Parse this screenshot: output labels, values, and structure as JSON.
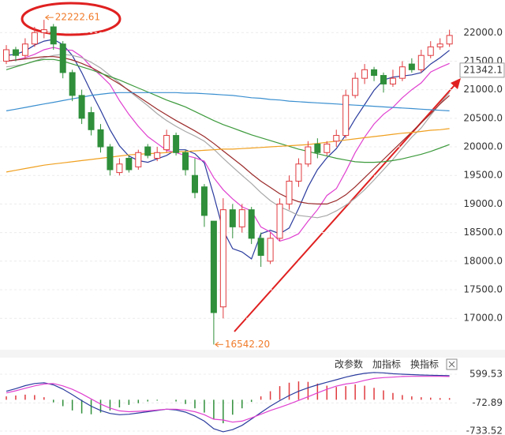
{
  "chart_data": [
    {
      "type": "candlestick",
      "open": [
        21500,
        21700,
        21600,
        21800,
        22000,
        22100,
        21800,
        21300,
        20900,
        20600,
        20300,
        20000,
        19550,
        19800,
        19650,
        20000,
        19800,
        19950,
        20200,
        19900,
        19500,
        19300,
        18700,
        17200,
        18900,
        18600,
        18900,
        18400,
        18000,
        18400,
        19000,
        19400,
        19700,
        20050,
        19900,
        20100,
        20200,
        20900,
        21200,
        21350,
        21250,
        21100,
        21200,
        21450,
        21350,
        21600,
        21750,
        21800
      ],
      "high": [
        21780,
        21750,
        21900,
        22100,
        22222.61,
        22150,
        21850,
        21350,
        21000,
        20700,
        20400,
        20050,
        19800,
        19850,
        19950,
        20050,
        20000,
        20300,
        20250,
        19950,
        19800,
        19350,
        18700,
        19100,
        19000,
        19000,
        18950,
        18500,
        18500,
        19100,
        19500,
        19800,
        20100,
        20150,
        20100,
        20300,
        21000,
        21300,
        21450,
        21400,
        21300,
        21350,
        21500,
        21550,
        21700,
        21850,
        21900,
        22050
      ],
      "low": [
        21450,
        21500,
        21550,
        21750,
        21900,
        21700,
        21200,
        20800,
        20400,
        20200,
        19900,
        19500,
        19500,
        19550,
        19600,
        19800,
        19750,
        19900,
        19850,
        19500,
        19100,
        18600,
        16542.2,
        17000,
        18400,
        18500,
        18300,
        17900,
        17950,
        18350,
        18900,
        19300,
        19650,
        19800,
        19850,
        20000,
        20150,
        20850,
        21100,
        21150,
        20950,
        21050,
        21150,
        21300,
        21300,
        21550,
        21700,
        21750
      ],
      "close": [
        21700,
        21600,
        21800,
        22000,
        22050,
        21800,
        21300,
        20900,
        20500,
        20300,
        20000,
        19600,
        19700,
        19600,
        19900,
        19850,
        19900,
        20200,
        19900,
        19600,
        19200,
        18800,
        17100,
        18900,
        18600,
        18900,
        18400,
        18100,
        18400,
        19000,
        19400,
        19700,
        20000,
        19900,
        20050,
        20200,
        20900,
        21200,
        21350,
        21250,
        21100,
        21200,
        21400,
        21350,
        21600,
        21750,
        21800,
        21950
      ],
      "up_color": "#e03a3e",
      "down_color": "#2f8f3a",
      "series": [
        {
          "color": "#2b3c9e",
          "values": [
            21600,
            21620,
            21680,
            21780,
            21850,
            21880,
            21790,
            21600,
            21300,
            20960,
            20640,
            20300,
            20020,
            19840,
            19760,
            19730,
            19790,
            19850,
            19950,
            19950,
            19880,
            19720,
            19150,
            18540,
            18220,
            18160,
            18040,
            18480,
            18540,
            18480,
            18580,
            18920,
            19300,
            19600,
            19810,
            19970,
            20210,
            20490,
            20740,
            20990,
            21170,
            21220,
            21240,
            21260,
            21300,
            21450,
            21560,
            21690
          ]
        },
        {
          "color": "#e040d0",
          "values": [
            21500,
            21520,
            21560,
            21620,
            21700,
            21740,
            21700,
            21690,
            21580,
            21400,
            21250,
            21090,
            20810,
            20570,
            20360,
            20180,
            20060,
            19940,
            19900,
            19850,
            19810,
            19750,
            19460,
            19250,
            19090,
            18950,
            18880,
            18600,
            18510,
            18350,
            18400,
            18480,
            18700,
            18900,
            19150,
            19270,
            19570,
            19900,
            20170,
            20400,
            20570,
            20690,
            20860,
            21000,
            21120,
            21310,
            21390,
            21460
          ]
        },
        {
          "color": "#a8a8a8",
          "values": [
            21400,
            21420,
            21450,
            21500,
            21560,
            21600,
            21620,
            21600,
            21560,
            21480,
            21380,
            21250,
            21120,
            20980,
            20850,
            20720,
            20580,
            20460,
            20360,
            20270,
            20190,
            20100,
            19960,
            19800,
            19650,
            19500,
            19360,
            19200,
            19060,
            18950,
            18880,
            18800,
            18780,
            18760,
            18800,
            18880,
            18980,
            19100,
            19250,
            19420,
            19600,
            19780,
            19980,
            20170,
            20330,
            20550,
            20760,
            20950
          ]
        },
        {
          "color": "#9b2a2a",
          "values": [
            21500,
            21520,
            21540,
            21560,
            21580,
            21580,
            21560,
            21520,
            21460,
            21390,
            21300,
            21200,
            21100,
            20990,
            20880,
            20770,
            20660,
            20560,
            20460,
            20370,
            20280,
            20180,
            20060,
            19930,
            19800,
            19670,
            19530,
            19400,
            19290,
            19180,
            19100,
            19040,
            19010,
            19000,
            19000,
            19060,
            19160,
            19300,
            19460,
            19620,
            19780,
            19940,
            20100,
            20260,
            20420,
            20580,
            20750,
            20900
          ]
        },
        {
          "color": "#3d9a3d",
          "values": [
            21350,
            21400,
            21450,
            21500,
            21530,
            21530,
            21500,
            21450,
            21400,
            21350,
            21290,
            21230,
            21170,
            21100,
            21030,
            20960,
            20890,
            20820,
            20760,
            20700,
            20620,
            20540,
            20460,
            20390,
            20330,
            20270,
            20210,
            20160,
            20110,
            20060,
            20010,
            19960,
            19920,
            19880,
            19840,
            19800,
            19770,
            19740,
            19730,
            19730,
            19740,
            19760,
            19790,
            19830,
            19870,
            19920,
            19980,
            20040
          ]
        },
        {
          "color": "#f0a020",
          "values": [
            19560,
            19590,
            19620,
            19650,
            19680,
            19700,
            19720,
            19740,
            19760,
            19780,
            19800,
            19820,
            19840,
            19860,
            19870,
            19880,
            19890,
            19900,
            19910,
            19920,
            19930,
            19940,
            19950,
            19960,
            19960,
            19970,
            19980,
            19990,
            20000,
            20010,
            20020,
            20030,
            20040,
            20060,
            20080,
            20100,
            20120,
            20140,
            20160,
            20180,
            20200,
            20220,
            20240,
            20250,
            20270,
            20290,
            20300,
            20320
          ]
        },
        {
          "color": "#3a8fd0",
          "values": [
            20630,
            20660,
            20690,
            20720,
            20750,
            20780,
            20810,
            20840,
            20870,
            20900,
            20920,
            20940,
            20950,
            20950,
            20950,
            20950,
            20950,
            20950,
            20950,
            20940,
            20940,
            20930,
            20920,
            20910,
            20900,
            20880,
            20860,
            20850,
            20830,
            20820,
            20800,
            20790,
            20780,
            20770,
            20760,
            20750,
            20740,
            20730,
            20720,
            20710,
            20700,
            20690,
            20680,
            20670,
            20660,
            20650,
            20640,
            20630
          ]
        }
      ],
      "ylim": [
        16450,
        22570
      ],
      "yticks": [
        {
          "value": 17000,
          "label": "17000.0"
        },
        {
          "value": 17500,
          "label": "17500.0"
        },
        {
          "value": 18000,
          "label": "18000.0"
        },
        {
          "value": 18500,
          "label": "18500.0"
        },
        {
          "value": 19000,
          "label": "19000.0"
        },
        {
          "value": 19500,
          "label": "19500.0"
        },
        {
          "value": 20000,
          "label": "20000.0"
        },
        {
          "value": 20500,
          "label": "20500.0"
        },
        {
          "value": 21000,
          "label": "21000.0"
        },
        {
          "value": 21500,
          "label": "21500.0"
        },
        {
          "value": 22000,
          "label": "22000.0"
        }
      ],
      "grid": true,
      "annotations": [
        {
          "text": "22222.61"
        },
        {
          "text": "16542.20"
        }
      ],
      "annotation_color": "#f07b2a",
      "last_price": 21342.1
    },
    {
      "type": "macd",
      "histogram": [
        80,
        100,
        120,
        110,
        60,
        -60,
        -150,
        -250,
        -320,
        -340,
        -300,
        -250,
        -180,
        -120,
        -80,
        -40,
        -20,
        0,
        -40,
        -100,
        -200,
        -300,
        -450,
        -550,
        -350,
        -200,
        -50,
        80,
        200,
        320,
        400,
        430,
        420,
        380,
        330,
        300,
        320,
        360,
        330,
        280,
        220,
        160,
        110,
        80,
        60,
        50,
        40,
        40
      ],
      "up_color": "#e03a3e",
      "down_color": "#2f8f3a",
      "series": [
        {
          "color": "#2b3c9e",
          "values": [
            200,
            260,
            330,
            380,
            400,
            350,
            250,
            120,
            -20,
            -150,
            -250,
            -320,
            -350,
            -340,
            -310,
            -280,
            -250,
            -220,
            -240,
            -290,
            -380,
            -500,
            -680,
            -750,
            -700,
            -600,
            -450,
            -300,
            -150,
            -20,
            100,
            200,
            280,
            350,
            410,
            470,
            530,
            580,
            620,
            640,
            630,
            610,
            600,
            590,
            580,
            575,
            570,
            565
          ]
        },
        {
          "color": "#e040d0",
          "values": [
            160,
            210,
            270,
            325,
            370,
            380,
            325,
            245,
            140,
            20,
            -100,
            -195,
            -260,
            -280,
            -270,
            -260,
            -240,
            -220,
            -220,
            -240,
            -280,
            -350,
            -455,
            -475,
            -525,
            -500,
            -425,
            -340,
            -250,
            -180,
            -100,
            -15,
            70,
            160,
            245,
            320,
            370,
            400,
            455,
            500,
            520,
            530,
            545,
            550,
            550,
            550,
            550,
            545
          ]
        }
      ],
      "ylim": [
        -826,
        951
      ],
      "yticks": [
        599.53,
        -72.89,
        -733.52
      ],
      "grid": true
    }
  ],
  "toolbar": [
    "改参数",
    "加指标",
    "换指标"
  ]
}
